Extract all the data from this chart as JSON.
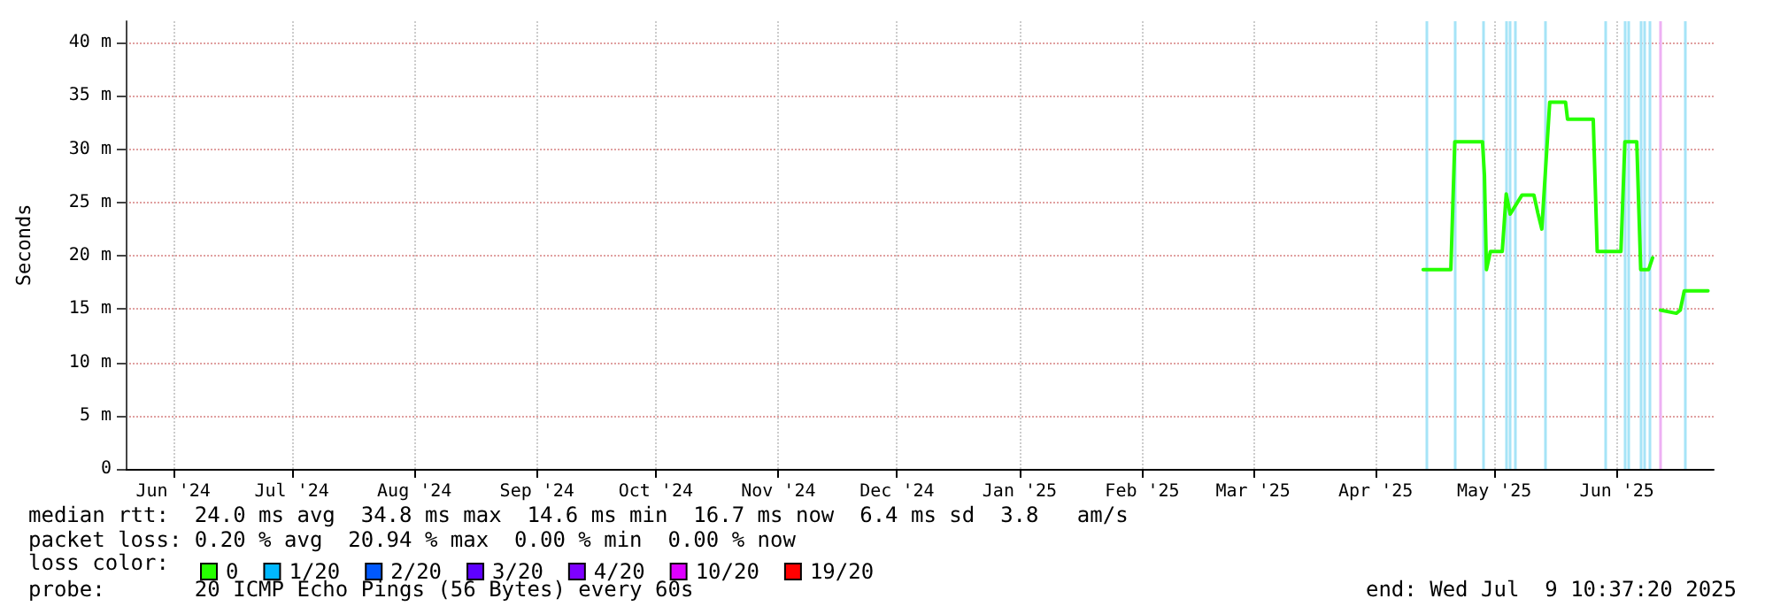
{
  "chart_data": {
    "type": "line",
    "ylabel": "Seconds",
    "legend_title": "loss color:",
    "legend": "bottom left",
    "xlim": [
      "2024-06-03",
      "2025-07-09T10:37"
    ],
    "xticks": [
      {
        "value": "2024-06-15",
        "label": "Jun '24"
      },
      {
        "value": "2024-07-15",
        "label": "Jul '24"
      },
      {
        "value": "2024-08-15",
        "label": "Aug '24"
      },
      {
        "value": "2024-09-15",
        "label": "Sep '24"
      },
      {
        "value": "2024-10-15",
        "label": "Oct '24"
      },
      {
        "value": "2024-11-15",
        "label": "Nov '24"
      },
      {
        "value": "2024-12-15",
        "label": "Dec '24"
      },
      {
        "value": "2025-01-15",
        "label": "Jan '25"
      },
      {
        "value": "2025-02-15",
        "label": "Feb '25"
      },
      {
        "value": "2025-03-15",
        "label": "Mar '25"
      },
      {
        "value": "2025-04-15",
        "label": "Apr '25"
      },
      {
        "value": "2025-05-15",
        "label": "May '25"
      },
      {
        "value": "2025-06-15",
        "label": "Jun '25"
      }
    ],
    "ylim": [
      0,
      42
    ],
    "yticks": [
      0,
      {
        "value": 5,
        "label": "5 m"
      },
      {
        "value": 10,
        "label": "10 m"
      },
      {
        "value": 15,
        "label": "15 m"
      },
      {
        "value": 20,
        "label": "20 m"
      },
      {
        "value": 25,
        "label": "25 m"
      },
      {
        "value": 30,
        "label": "30 m"
      },
      {
        "value": 35,
        "label": "35 m"
      },
      {
        "value": 40,
        "label": "40 m"
      }
    ],
    "grid": true,
    "marker": "none",
    "line_style": "solid",
    "series": [
      {
        "name": "0",
        "color": "#26ff00",
        "x": [
          "2025-04-27",
          "2025-05-04",
          "2025-05-05",
          "2025-05-12",
          "2025-05-12T12:00",
          "2025-05-13",
          "2025-05-14",
          "2025-05-17",
          "2025-05-18",
          "2025-05-19",
          "2025-05-22",
          "2025-05-25",
          "2025-05-26",
          "2025-05-27",
          "2025-05-29",
          "2025-06-02",
          "2025-06-02T12:00",
          "2025-06-09",
          "2025-06-10",
          "2025-06-16",
          "2025-06-17",
          "2025-06-20",
          "2025-06-21",
          "2025-06-23",
          "2025-06-24",
          "2025-06-25",
          "2025-06-26",
          "2025-06-30",
          "2025-07-01",
          "2025-07-02",
          "2025-07-08"
        ],
        "values": [
          18.7,
          18.7,
          30.7,
          30.7,
          27.5,
          18.7,
          20.4,
          20.4,
          25.8,
          23.9,
          25.7,
          25.7,
          24.0,
          22.5,
          34.4,
          34.4,
          32.8,
          32.8,
          20.4,
          20.4,
          30.7,
          30.7,
          18.7,
          18.7,
          19.8,
          null,
          14.9,
          14.6,
          14.9,
          16.7,
          16.7
        ]
      },
      {
        "name": "1/20",
        "color": "#00b8ff"
      },
      {
        "name": "2/20",
        "color": "#0059ff"
      },
      {
        "name": "3/20",
        "color": "#5e00ff"
      },
      {
        "name": "4/20",
        "color": "#7e00ff"
      },
      {
        "name": "10/20",
        "color": "#dd00ff"
      },
      {
        "name": "19/20",
        "color": "#ff0000"
      }
    ],
    "ref_lines": [
      {
        "axis": "x",
        "value": "2025-04-28",
        "color": "#a6e4f7"
      },
      {
        "axis": "x",
        "value": "2025-05-05",
        "color": "#a6e4f7"
      },
      {
        "axis": "x",
        "value": "2025-05-12",
        "color": "#a6e4f7"
      },
      {
        "axis": "x",
        "value": "2025-05-18",
        "color": "#a6e4f7"
      },
      {
        "axis": "x",
        "value": "2025-05-19",
        "color": "#a6e4f7"
      },
      {
        "axis": "x",
        "value": "2025-05-20",
        "color": "#a6e4f7"
      },
      {
        "axis": "x",
        "value": "2025-05-28",
        "color": "#a6e4f7"
      },
      {
        "axis": "x",
        "value": "2025-06-12",
        "color": "#a6e4f7"
      },
      {
        "axis": "x",
        "value": "2025-06-17",
        "color": "#a6e4f7"
      },
      {
        "axis": "x",
        "value": "2025-06-18",
        "color": "#a6e4f7"
      },
      {
        "axis": "x",
        "value": "2025-06-21",
        "color": "#a6e4f7"
      },
      {
        "axis": "x",
        "value": "2025-06-22",
        "color": "#a6e4f7"
      },
      {
        "axis": "x",
        "value": "2025-06-23",
        "color": "#a6e4f7"
      },
      {
        "axis": "x",
        "value": "2025-06-26",
        "color": "#eeb0f4"
      },
      {
        "axis": "x",
        "value": "2025-07-02",
        "color": "#a6e4f7"
      }
    ],
    "annotations": [
      "median rtt:  24.0 ms avg  34.8 ms max  14.6 ms min  16.7 ms now  6.4 ms sd  3.8   am/s",
      "packet loss: 0.20 % avg  20.94 % max  0.00 % min  0.00 % now",
      "probe:       20 ICMP Echo Pings (56 Bytes) every 60s",
      "end: Wed Jul  9 10:37:20 2025"
    ]
  }
}
